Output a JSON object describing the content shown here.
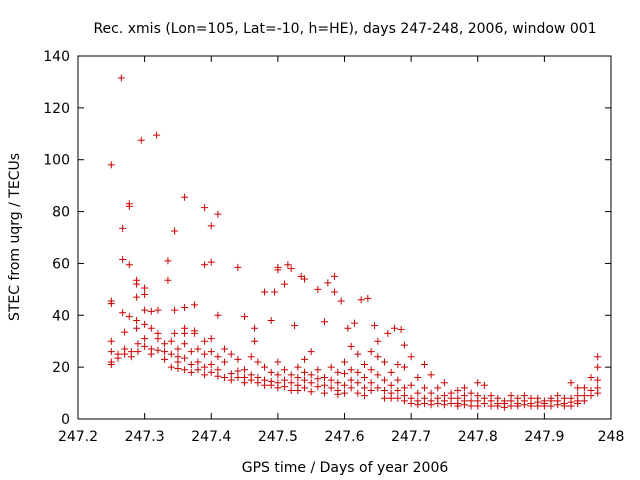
{
  "chart_data": {
    "type": "scatter",
    "title": "Rec. xmis (Lon=105, Lat=-10, h=HE), days 247-248, 2006, window 001",
    "xlabel": "GPS time / Days of year 2006",
    "ylabel": "STEC from uqrg / TECUs",
    "xlim": [
      247.2,
      248
    ],
    "ylim": [
      0,
      140
    ],
    "xticks": [
      247.2,
      247.3,
      247.4,
      247.5,
      247.6,
      247.7,
      247.8,
      247.9,
      248
    ],
    "xtick_labels": [
      "247.2",
      "247.3",
      "247.4",
      "247.5",
      "247.6",
      "247.7",
      "247.8",
      "247.9",
      "248"
    ],
    "yticks": [
      0,
      20,
      40,
      60,
      80,
      100,
      120,
      140
    ],
    "ytick_labels": [
      "0",
      "20",
      "40",
      "60",
      "80",
      "100",
      "120",
      "140"
    ],
    "grid": false,
    "legend": "none",
    "marker": "plus",
    "color": "#cc0000",
    "points": [
      [
        247.25,
        98
      ],
      [
        247.265,
        131.5
      ],
      [
        247.295,
        107.5
      ],
      [
        247.318,
        109.5
      ],
      [
        247.277,
        83
      ],
      [
        247.277,
        82
      ],
      [
        247.267,
        73.5
      ],
      [
        247.267,
        61.5
      ],
      [
        247.277,
        59.5
      ],
      [
        247.25,
        45.5
      ],
      [
        247.25,
        44.5
      ],
      [
        247.267,
        41
      ],
      [
        247.277,
        39.5
      ],
      [
        247.288,
        53.5
      ],
      [
        247.288,
        52
      ],
      [
        247.288,
        47
      ],
      [
        247.288,
        38
      ],
      [
        247.288,
        35
      ],
      [
        247.3,
        50.5
      ],
      [
        247.3,
        48
      ],
      [
        247.3,
        42
      ],
      [
        247.3,
        36.5
      ],
      [
        247.3,
        31
      ],
      [
        247.31,
        41.5
      ],
      [
        247.31,
        35
      ],
      [
        247.32,
        42
      ],
      [
        247.32,
        33
      ],
      [
        247.32,
        31
      ],
      [
        247.335,
        61
      ],
      [
        247.335,
        53.5
      ],
      [
        247.345,
        72.5
      ],
      [
        247.345,
        42
      ],
      [
        247.345,
        33
      ],
      [
        247.36,
        85.5
      ],
      [
        247.36,
        43
      ],
      [
        247.36,
        35
      ],
      [
        247.36,
        33
      ],
      [
        247.375,
        44
      ],
      [
        247.375,
        34
      ],
      [
        247.375,
        33
      ],
      [
        247.39,
        81.5
      ],
      [
        247.39,
        59.5
      ],
      [
        247.39,
        30
      ],
      [
        247.4,
        74.5
      ],
      [
        247.4,
        60.5
      ],
      [
        247.41,
        79
      ],
      [
        247.41,
        40
      ],
      [
        247.4,
        31
      ],
      [
        247.44,
        58.5
      ],
      [
        247.45,
        39.5
      ],
      [
        247.465,
        35
      ],
      [
        247.465,
        30
      ],
      [
        247.48,
        49
      ],
      [
        247.49,
        38
      ],
      [
        247.495,
        49
      ],
      [
        247.5,
        57.5
      ],
      [
        247.5,
        58.5
      ],
      [
        247.51,
        52
      ],
      [
        247.515,
        59.5
      ],
      [
        247.52,
        58
      ],
      [
        247.525,
        36
      ],
      [
        247.535,
        55
      ],
      [
        247.54,
        54
      ],
      [
        247.55,
        26
      ],
      [
        247.56,
        50
      ],
      [
        247.57,
        37.5
      ],
      [
        247.575,
        52.5
      ],
      [
        247.585,
        55
      ],
      [
        247.585,
        49
      ],
      [
        247.595,
        45.5
      ],
      [
        247.605,
        35
      ],
      [
        247.615,
        37
      ],
      [
        247.625,
        46
      ],
      [
        247.635,
        46.5
      ],
      [
        247.645,
        36
      ],
      [
        247.665,
        33
      ],
      [
        247.675,
        35
      ],
      [
        247.685,
        34.5
      ],
      [
        247.69,
        28.5
      ],
      [
        247.25,
        30
      ],
      [
        247.25,
        26
      ],
      [
        247.25,
        22
      ],
      [
        247.25,
        21
      ],
      [
        247.26,
        25
      ],
      [
        247.26,
        23.5
      ],
      [
        247.27,
        33.5
      ],
      [
        247.27,
        27
      ],
      [
        247.27,
        25
      ],
      [
        247.28,
        26
      ],
      [
        247.28,
        24
      ],
      [
        247.29,
        29
      ],
      [
        247.29,
        26
      ],
      [
        247.3,
        28
      ],
      [
        247.31,
        27
      ],
      [
        247.31,
        25
      ],
      [
        247.32,
        26.5
      ],
      [
        247.33,
        29
      ],
      [
        247.33,
        26
      ],
      [
        247.33,
        23
      ],
      [
        247.34,
        30
      ],
      [
        247.34,
        25
      ],
      [
        247.34,
        20
      ],
      [
        247.35,
        27
      ],
      [
        247.35,
        24
      ],
      [
        247.35,
        22
      ],
      [
        247.35,
        19.5
      ],
      [
        247.36,
        29
      ],
      [
        247.36,
        23.5
      ],
      [
        247.36,
        19
      ],
      [
        247.37,
        26
      ],
      [
        247.37,
        21
      ],
      [
        247.37,
        18
      ],
      [
        247.38,
        27
      ],
      [
        247.38,
        22
      ],
      [
        247.38,
        19
      ],
      [
        247.39,
        25
      ],
      [
        247.39,
        20
      ],
      [
        247.39,
        17
      ],
      [
        247.4,
        26
      ],
      [
        247.4,
        21
      ],
      [
        247.4,
        18
      ],
      [
        247.41,
        24
      ],
      [
        247.41,
        19
      ],
      [
        247.41,
        16.5
      ],
      [
        247.42,
        27
      ],
      [
        247.42,
        22
      ],
      [
        247.42,
        16
      ],
      [
        247.43,
        25
      ],
      [
        247.43,
        17.5
      ],
      [
        247.43,
        15
      ],
      [
        247.44,
        23
      ],
      [
        247.44,
        18.5
      ],
      [
        247.44,
        16
      ],
      [
        247.45,
        19
      ],
      [
        247.45,
        16
      ],
      [
        247.45,
        14
      ],
      [
        247.46,
        24
      ],
      [
        247.46,
        17
      ],
      [
        247.46,
        15
      ],
      [
        247.47,
        22
      ],
      [
        247.47,
        16
      ],
      [
        247.47,
        14
      ],
      [
        247.48,
        20
      ],
      [
        247.48,
        15
      ],
      [
        247.48,
        13
      ],
      [
        247.49,
        18
      ],
      [
        247.49,
        14.5
      ],
      [
        247.49,
        13
      ],
      [
        247.5,
        22
      ],
      [
        247.5,
        17
      ],
      [
        247.5,
        14
      ],
      [
        247.5,
        12
      ],
      [
        247.51,
        19
      ],
      [
        247.51,
        15
      ],
      [
        247.51,
        12.5
      ],
      [
        247.52,
        17
      ],
      [
        247.52,
        14
      ],
      [
        247.52,
        11
      ],
      [
        247.53,
        20
      ],
      [
        247.53,
        16
      ],
      [
        247.53,
        13
      ],
      [
        247.53,
        11
      ],
      [
        247.54,
        23
      ],
      [
        247.54,
        18
      ],
      [
        247.54,
        15
      ],
      [
        247.54,
        12
      ],
      [
        247.55,
        17
      ],
      [
        247.55,
        14
      ],
      [
        247.55,
        10.5
      ],
      [
        247.56,
        19
      ],
      [
        247.56,
        15.5
      ],
      [
        247.56,
        12.5
      ],
      [
        247.57,
        16
      ],
      [
        247.57,
        13
      ],
      [
        247.57,
        10
      ],
      [
        247.58,
        20
      ],
      [
        247.58,
        15
      ],
      [
        247.58,
        12
      ],
      [
        247.59,
        18
      ],
      [
        247.59,
        14
      ],
      [
        247.59,
        11
      ],
      [
        247.59,
        9.5
      ],
      [
        247.6,
        22
      ],
      [
        247.6,
        17.5
      ],
      [
        247.6,
        13
      ],
      [
        247.6,
        10
      ],
      [
        247.61,
        28
      ],
      [
        247.61,
        19
      ],
      [
        247.61,
        15
      ],
      [
        247.61,
        12
      ],
      [
        247.62,
        25
      ],
      [
        247.62,
        18
      ],
      [
        247.62,
        14
      ],
      [
        247.62,
        10
      ],
      [
        247.63,
        21
      ],
      [
        247.63,
        16
      ],
      [
        247.63,
        12
      ],
      [
        247.63,
        9
      ],
      [
        247.64,
        26
      ],
      [
        247.64,
        19
      ],
      [
        247.64,
        14
      ],
      [
        247.64,
        11
      ],
      [
        247.65,
        30
      ],
      [
        247.65,
        24
      ],
      [
        247.65,
        17
      ],
      [
        247.65,
        12
      ],
      [
        247.66,
        22
      ],
      [
        247.66,
        15
      ],
      [
        247.66,
        11
      ],
      [
        247.66,
        8
      ],
      [
        247.67,
        18
      ],
      [
        247.67,
        13
      ],
      [
        247.67,
        10
      ],
      [
        247.67,
        8
      ],
      [
        247.68,
        21
      ],
      [
        247.68,
        15
      ],
      [
        247.68,
        11
      ],
      [
        247.68,
        8
      ],
      [
        247.69,
        20
      ],
      [
        247.69,
        12
      ],
      [
        247.69,
        9
      ],
      [
        247.69,
        7
      ],
      [
        247.7,
        24
      ],
      [
        247.7,
        13
      ],
      [
        247.7,
        8
      ],
      [
        247.7,
        6
      ],
      [
        247.71,
        16
      ],
      [
        247.71,
        10
      ],
      [
        247.71,
        7
      ],
      [
        247.71,
        5.5
      ],
      [
        247.72,
        21
      ],
      [
        247.72,
        12
      ],
      [
        247.72,
        8
      ],
      [
        247.72,
        6
      ],
      [
        247.73,
        17
      ],
      [
        247.73,
        10
      ],
      [
        247.73,
        7
      ],
      [
        247.73,
        5.5
      ],
      [
        247.74,
        12
      ],
      [
        247.74,
        8
      ],
      [
        247.74,
        6
      ],
      [
        247.75,
        14
      ],
      [
        247.75,
        9
      ],
      [
        247.75,
        7
      ],
      [
        247.75,
        5.5
      ],
      [
        247.76,
        10
      ],
      [
        247.76,
        8
      ],
      [
        247.76,
        6
      ],
      [
        247.77,
        11
      ],
      [
        247.77,
        8
      ],
      [
        247.77,
        6
      ],
      [
        247.77,
        5
      ],
      [
        247.78,
        12
      ],
      [
        247.78,
        9
      ],
      [
        247.78,
        7
      ],
      [
        247.78,
        5.5
      ],
      [
        247.79,
        10
      ],
      [
        247.79,
        7
      ],
      [
        247.79,
        5
      ],
      [
        247.8,
        14
      ],
      [
        247.8,
        9
      ],
      [
        247.8,
        7
      ],
      [
        247.8,
        5
      ],
      [
        247.81,
        13
      ],
      [
        247.81,
        8
      ],
      [
        247.81,
        6
      ],
      [
        247.82,
        9
      ],
      [
        247.82,
        7
      ],
      [
        247.82,
        5
      ],
      [
        247.83,
        8
      ],
      [
        247.83,
        6
      ],
      [
        247.83,
        5
      ],
      [
        247.84,
        7
      ],
      [
        247.84,
        6
      ],
      [
        247.84,
        4.5
      ],
      [
        247.85,
        9
      ],
      [
        247.85,
        7
      ],
      [
        247.85,
        5
      ],
      [
        247.86,
        8
      ],
      [
        247.86,
        6
      ],
      [
        247.86,
        5
      ],
      [
        247.87,
        9
      ],
      [
        247.87,
        7
      ],
      [
        247.87,
        5.5
      ],
      [
        247.88,
        8
      ],
      [
        247.88,
        6
      ],
      [
        247.88,
        5
      ],
      [
        247.89,
        8
      ],
      [
        247.89,
        6.5
      ],
      [
        247.89,
        5
      ],
      [
        247.9,
        7
      ],
      [
        247.9,
        6
      ],
      [
        247.9,
        5
      ],
      [
        247.91,
        8
      ],
      [
        247.91,
        7
      ],
      [
        247.91,
        5
      ],
      [
        247.92,
        9
      ],
      [
        247.92,
        7
      ],
      [
        247.92,
        5.5
      ],
      [
        247.93,
        8
      ],
      [
        247.93,
        6
      ],
      [
        247.93,
        5
      ],
      [
        247.94,
        14
      ],
      [
        247.94,
        8
      ],
      [
        247.94,
        6.5
      ],
      [
        247.94,
        5
      ],
      [
        247.95,
        12
      ],
      [
        247.95,
        9
      ],
      [
        247.95,
        7
      ],
      [
        247.95,
        6
      ],
      [
        247.96,
        12
      ],
      [
        247.96,
        9
      ],
      [
        247.96,
        7
      ],
      [
        247.97,
        16
      ],
      [
        247.97,
        11
      ],
      [
        247.97,
        9
      ],
      [
        247.98,
        24
      ],
      [
        247.98,
        20
      ],
      [
        247.98,
        15
      ],
      [
        247.98,
        12
      ],
      [
        247.98,
        10
      ]
    ]
  }
}
